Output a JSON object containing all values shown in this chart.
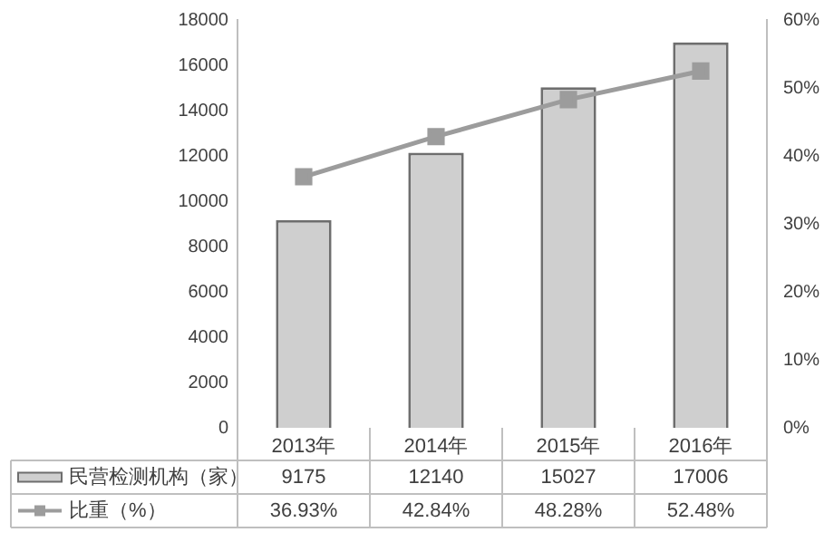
{
  "chart_data": {
    "type": "bar",
    "categories": [
      "2013年",
      "2014年",
      "2015年",
      "2016年"
    ],
    "series": [
      {
        "name": "民营检测机构（家）",
        "color": "#cfcfcf",
        "values": [
          9175,
          12140,
          15027,
          17006
        ],
        "value_labels": [
          "9175",
          "12140",
          "15027",
          "17006"
        ]
      },
      {
        "name": "比重（%）",
        "type": "line",
        "axis": "y2",
        "color": "#9c9c9c",
        "values": [
          36.93,
          42.84,
          48.28,
          52.48
        ],
        "value_labels": [
          "36.93%",
          "42.84%",
          "48.28%",
          "52.48%"
        ]
      }
    ],
    "ylim": [
      0,
      18000
    ],
    "yticks": [
      0,
      2000,
      4000,
      6000,
      8000,
      10000,
      12000,
      14000,
      16000,
      18000
    ],
    "y2lim": [
      0,
      60
    ],
    "y2ticks": [
      {
        "value": 0,
        "label": "0%"
      },
      {
        "value": 10,
        "label": "10%"
      },
      {
        "value": 20,
        "label": "20%"
      },
      {
        "value": 30,
        "label": "30%"
      },
      {
        "value": 40,
        "label": "40%"
      },
      {
        "value": 50,
        "label": "50%"
      },
      {
        "value": 60,
        "label": "60%"
      }
    ],
    "grid": false,
    "legend": "bottom",
    "marker": "square",
    "line_style": "solid"
  }
}
